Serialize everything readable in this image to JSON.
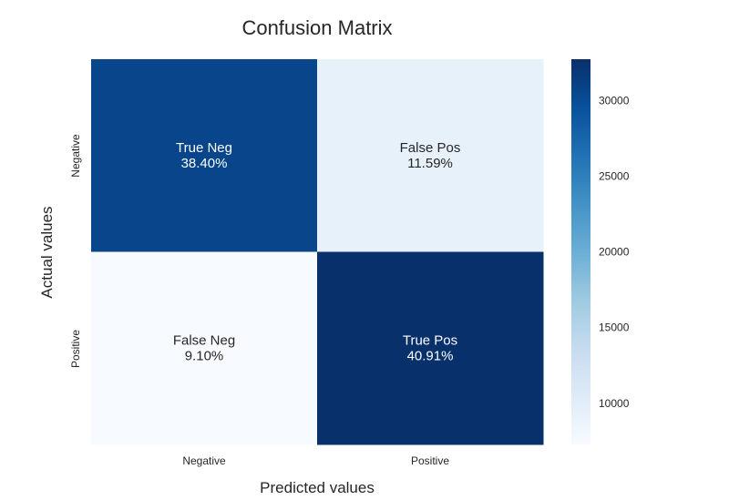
{
  "chart_data": {
    "type": "heatmap",
    "title": "Confusion Matrix",
    "xlabel": "Predicted values",
    "ylabel": "Actual values",
    "x_categories": [
      "Negative",
      "Positive"
    ],
    "y_categories": [
      "Negative",
      "Positive"
    ],
    "values": [
      [
        30720,
        9272
      ],
      [
        7280,
        32728
      ]
    ],
    "cell_labels": [
      [
        {
          "name": "True Neg",
          "pct": "38.40%"
        },
        {
          "name": "False Pos",
          "pct": "11.59%"
        }
      ],
      [
        {
          "name": "False Neg",
          "pct": "9.10%"
        },
        {
          "name": "True Pos",
          "pct": "40.91%"
        }
      ]
    ],
    "colorbar": {
      "range": [
        7280,
        32728
      ],
      "ticks": [
        10000,
        15000,
        20000,
        25000,
        30000
      ],
      "colormap": "Blues"
    },
    "colors": [
      "#f7fbff",
      "#deebf7",
      "#c6dbef",
      "#9ecae1",
      "#6baed6",
      "#4292c6",
      "#2171b5",
      "#08519c",
      "#08306b"
    ]
  }
}
